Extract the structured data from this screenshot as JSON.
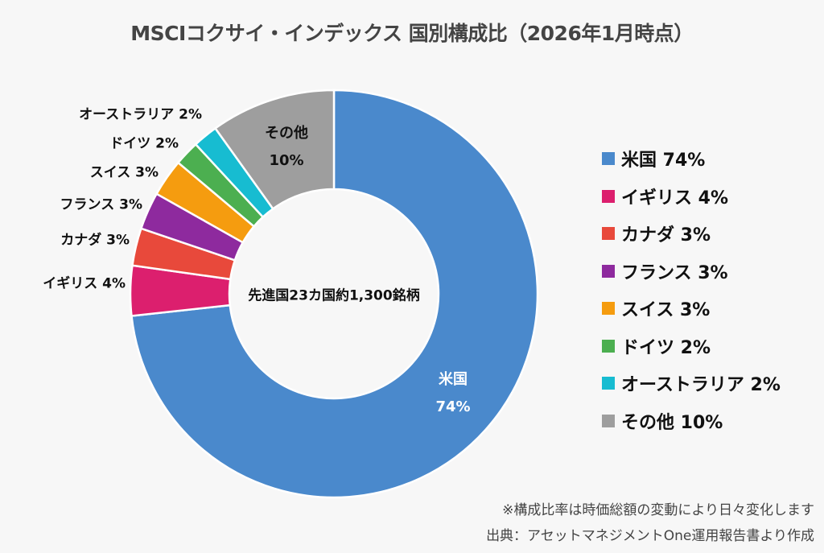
{
  "chart_data": {
    "type": "pie",
    "variant": "donut",
    "title": "MSCIコクサイ・インデックス  国別構成比（2026年1月時点）",
    "center_label": "先進国23カ国約1,300銘柄",
    "unit": "%",
    "start": "12 o'clock, clockwise",
    "slices": [
      {
        "name": "米国",
        "value": 74,
        "label": "米国 74%",
        "color": "#4a89cc"
      },
      {
        "name": "イギリス",
        "value": 4,
        "label": "イギリス 4%",
        "color": "#dc1f6e"
      },
      {
        "name": "カナダ",
        "value": 3,
        "label": "カナダ 3%",
        "color": "#e8493b"
      },
      {
        "name": "フランス",
        "value": 3,
        "label": "フランス 3%",
        "color": "#8e2a9e"
      },
      {
        "name": "スイス",
        "value": 3,
        "label": "スイス 3%",
        "color": "#f59c0f"
      },
      {
        "name": "ドイツ",
        "value": 2,
        "label": "ドイツ 2%",
        "color": "#4caf50"
      },
      {
        "name": "オーストラリア",
        "value": 2,
        "label": "オーストラリア 2%",
        "color": "#17bcd1"
      },
      {
        "name": "その他",
        "value": 10,
        "label": "その他 10%",
        "color": "#9e9e9e"
      }
    ],
    "inner_labels": {
      "us_name": "米国",
      "us_value": "74%",
      "other_name": "その他",
      "other_value": "10%"
    },
    "legend_position": "right"
  },
  "notes": {
    "line1": "※構成比率は時価総額の変動により日々変化します",
    "line2": "出典：アセットマネジメントOne運用報告書より作成"
  }
}
